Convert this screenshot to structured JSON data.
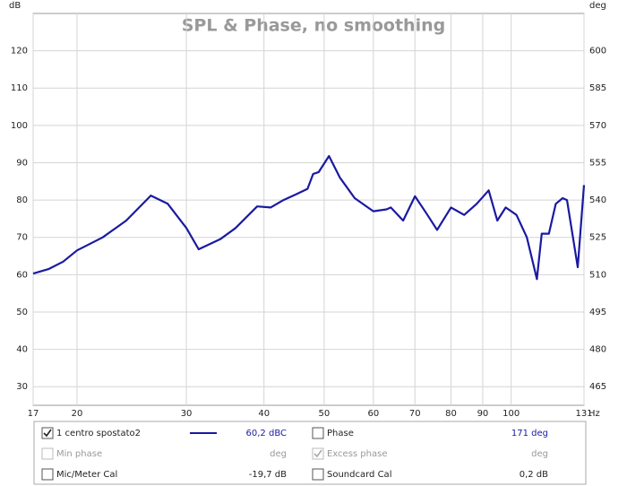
{
  "chart_data": {
    "type": "line",
    "title": "SPL & Phase, no smoothing",
    "y_unit": "dB",
    "y2_unit": "deg",
    "x_unit": "Hz",
    "log_x": true,
    "grid": true,
    "xlim": [
      17,
      131
    ],
    "xticks": [
      17,
      20,
      30,
      40,
      50,
      60,
      70,
      80,
      90,
      100,
      131
    ],
    "ylim": [
      25,
      130
    ],
    "yticks": [
      30,
      40,
      50,
      60,
      70,
      80,
      90,
      100,
      110,
      120
    ],
    "y2lim": [
      457.5,
      615
    ],
    "y2ticks": [
      465,
      480,
      495,
      510,
      525,
      540,
      555,
      570,
      585,
      600
    ],
    "series": [
      {
        "name": "1 centro spostato2",
        "color": "#1a1aa0",
        "x": [
          17,
          18,
          19,
          20,
          22,
          24,
          26.3,
          28,
          30,
          31.4,
          34,
          36,
          39,
          41,
          43,
          45,
          47,
          48,
          49,
          50.9,
          53,
          56,
          60,
          63,
          64,
          67,
          70,
          73,
          76,
          80,
          84,
          88,
          92,
          95,
          98,
          102,
          106,
          110,
          112,
          115,
          118,
          121,
          123,
          128,
          131
        ],
        "values": [
          60.3,
          61.5,
          63.5,
          66.5,
          70,
          74.5,
          81.2,
          79,
          72.5,
          66.8,
          69.5,
          72.5,
          78.3,
          78,
          80,
          81.5,
          83,
          87,
          87.5,
          91.8,
          86,
          80.5,
          77,
          77.5,
          78,
          74.5,
          81,
          76.5,
          72,
          78,
          76,
          79,
          82.6,
          74.5,
          78,
          76,
          70,
          58.8,
          71,
          71,
          79,
          80.5,
          80,
          62,
          84
        ]
      }
    ]
  },
  "legend_panel": {
    "rows": [
      [
        {
          "label": "1 centro spostato2",
          "checked": true,
          "enabled": true,
          "value": "60,2 dBC"
        },
        {
          "label": "Phase",
          "checked": false,
          "enabled": true,
          "value": "171 deg"
        }
      ],
      [
        {
          "label": "Min phase",
          "checked": false,
          "enabled": false,
          "value": "deg"
        },
        {
          "label": "Excess phase",
          "checked": true,
          "enabled": false,
          "value": "deg"
        }
      ],
      [
        {
          "label": "Mic/Meter Cal",
          "checked": false,
          "enabled": true,
          "value": "-19,7 dB"
        },
        {
          "label": "Soundcard Cal",
          "checked": false,
          "enabled": true,
          "value": "0,2 dB"
        }
      ]
    ]
  }
}
